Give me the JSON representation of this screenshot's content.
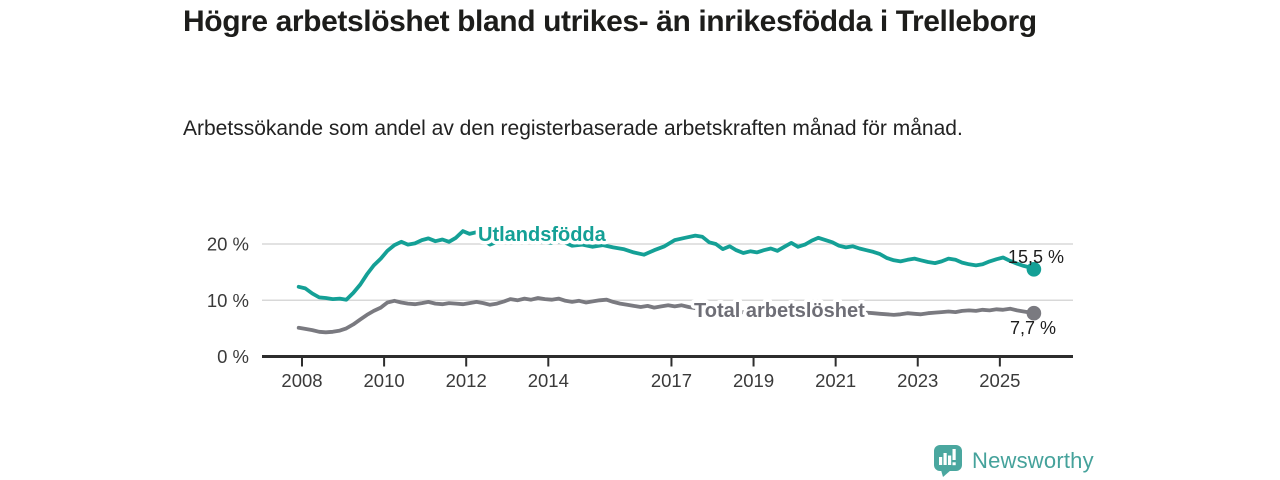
{
  "title": "Högre arbetslöshet bland utrikes- än inrikesfödda i Trelleborg",
  "subtitle": "Arbetssökande som andel av den registerbaserade arbetskraften månad för månad.",
  "footer": {
    "brand": "Newsworthy",
    "brand_color": "#45a29b",
    "logo_icon": "bar-chart-speech-bubble-icon"
  },
  "chart_data": {
    "type": "line",
    "unit": "%",
    "grid": true,
    "legend_position": "inline-labels",
    "x_axis": {
      "ticks": [
        2008,
        2010,
        2012,
        2014,
        2017,
        2019,
        2021,
        2023,
        2025
      ],
      "tick_labels": [
        "2008",
        "2010",
        "2012",
        "2014",
        "2017",
        "2019",
        "2021",
        "2023",
        "2025"
      ],
      "range": [
        2007.0,
        2026.7
      ]
    },
    "y_axis": {
      "ticks": [
        0,
        10,
        20
      ],
      "tick_labels": [
        "0 %",
        "10 %",
        "20 %"
      ],
      "range": [
        0,
        22.5
      ]
    },
    "series": [
      {
        "id": "utlandsfodda",
        "name": "Utlandsfödda",
        "color": "#14a096",
        "end_value": 15.5,
        "end_label": "15,5 %",
        "points": [
          [
            2007.92,
            12.4
          ],
          [
            2008.08,
            12.1
          ],
          [
            2008.25,
            11.2
          ],
          [
            2008.42,
            10.5
          ],
          [
            2008.58,
            10.4
          ],
          [
            2008.75,
            10.2
          ],
          [
            2008.92,
            10.3
          ],
          [
            2009.08,
            10.1
          ],
          [
            2009.25,
            11.3
          ],
          [
            2009.42,
            12.8
          ],
          [
            2009.58,
            14.6
          ],
          [
            2009.75,
            16.2
          ],
          [
            2009.92,
            17.4
          ],
          [
            2010.08,
            18.8
          ],
          [
            2010.25,
            19.8
          ],
          [
            2010.42,
            20.4
          ],
          [
            2010.58,
            19.9
          ],
          [
            2010.75,
            20.1
          ],
          [
            2010.92,
            20.7
          ],
          [
            2011.08,
            21.0
          ],
          [
            2011.25,
            20.5
          ],
          [
            2011.42,
            20.8
          ],
          [
            2011.58,
            20.4
          ],
          [
            2011.75,
            21.1
          ],
          [
            2011.92,
            22.3
          ],
          [
            2012.08,
            21.8
          ],
          [
            2012.25,
            22.1
          ],
          [
            2012.42,
            20.7
          ],
          [
            2012.58,
            19.9
          ],
          [
            2012.75,
            20.4
          ],
          [
            2012.92,
            20.6
          ],
          [
            2013.08,
            20.3
          ],
          [
            2013.33,
            20.8
          ],
          [
            2013.58,
            21.1
          ],
          [
            2013.83,
            20.4
          ],
          [
            2014.08,
            20.2
          ],
          [
            2014.33,
            20.5
          ],
          [
            2014.58,
            19.7
          ],
          [
            2014.83,
            19.9
          ],
          [
            2015.08,
            19.5
          ],
          [
            2015.33,
            19.8
          ],
          [
            2015.58,
            19.4
          ],
          [
            2015.83,
            19.1
          ],
          [
            2016.08,
            18.5
          ],
          [
            2016.33,
            18.1
          ],
          [
            2016.58,
            18.9
          ],
          [
            2016.83,
            19.6
          ],
          [
            2017.08,
            20.7
          ],
          [
            2017.33,
            21.1
          ],
          [
            2017.58,
            21.5
          ],
          [
            2017.75,
            21.3
          ],
          [
            2017.92,
            20.3
          ],
          [
            2018.08,
            20.0
          ],
          [
            2018.25,
            19.1
          ],
          [
            2018.42,
            19.6
          ],
          [
            2018.58,
            18.9
          ],
          [
            2018.75,
            18.4
          ],
          [
            2018.92,
            18.7
          ],
          [
            2019.08,
            18.5
          ],
          [
            2019.25,
            18.9
          ],
          [
            2019.42,
            19.2
          ],
          [
            2019.58,
            18.8
          ],
          [
            2019.75,
            19.5
          ],
          [
            2019.92,
            20.2
          ],
          [
            2020.08,
            19.5
          ],
          [
            2020.25,
            19.9
          ],
          [
            2020.42,
            20.6
          ],
          [
            2020.58,
            21.1
          ],
          [
            2020.75,
            20.7
          ],
          [
            2020.92,
            20.3
          ],
          [
            2021.08,
            19.7
          ],
          [
            2021.25,
            19.4
          ],
          [
            2021.42,
            19.6
          ],
          [
            2021.58,
            19.2
          ],
          [
            2021.75,
            18.9
          ],
          [
            2021.92,
            18.6
          ],
          [
            2022.08,
            18.2
          ],
          [
            2022.25,
            17.5
          ],
          [
            2022.42,
            17.1
          ],
          [
            2022.58,
            16.9
          ],
          [
            2022.75,
            17.2
          ],
          [
            2022.92,
            17.4
          ],
          [
            2023.08,
            17.1
          ],
          [
            2023.25,
            16.8
          ],
          [
            2023.42,
            16.6
          ],
          [
            2023.58,
            16.9
          ],
          [
            2023.75,
            17.4
          ],
          [
            2023.92,
            17.2
          ],
          [
            2024.08,
            16.7
          ],
          [
            2024.25,
            16.4
          ],
          [
            2024.42,
            16.2
          ],
          [
            2024.58,
            16.4
          ],
          [
            2024.75,
            16.9
          ],
          [
            2024.92,
            17.3
          ],
          [
            2025.08,
            17.6
          ],
          [
            2025.25,
            17.0
          ],
          [
            2025.42,
            16.5
          ],
          [
            2025.58,
            16.1
          ],
          [
            2025.75,
            15.8
          ],
          [
            2025.83,
            15.5
          ]
        ]
      },
      {
        "id": "total",
        "name": "Total arbetslöshet",
        "color": "#7a7a80",
        "end_value": 7.7,
        "end_label": "7,7 %",
        "points": [
          [
            2007.92,
            5.1
          ],
          [
            2008.08,
            4.9
          ],
          [
            2008.25,
            4.7
          ],
          [
            2008.42,
            4.4
          ],
          [
            2008.58,
            4.3
          ],
          [
            2008.75,
            4.4
          ],
          [
            2008.92,
            4.6
          ],
          [
            2009.08,
            5.0
          ],
          [
            2009.25,
            5.7
          ],
          [
            2009.42,
            6.6
          ],
          [
            2009.58,
            7.4
          ],
          [
            2009.75,
            8.1
          ],
          [
            2009.92,
            8.7
          ],
          [
            2010.08,
            9.6
          ],
          [
            2010.25,
            9.9
          ],
          [
            2010.42,
            9.6
          ],
          [
            2010.58,
            9.4
          ],
          [
            2010.75,
            9.3
          ],
          [
            2010.92,
            9.5
          ],
          [
            2011.08,
            9.7
          ],
          [
            2011.25,
            9.4
          ],
          [
            2011.42,
            9.3
          ],
          [
            2011.58,
            9.5
          ],
          [
            2011.75,
            9.4
          ],
          [
            2011.92,
            9.3
          ],
          [
            2012.08,
            9.5
          ],
          [
            2012.25,
            9.7
          ],
          [
            2012.42,
            9.5
          ],
          [
            2012.58,
            9.2
          ],
          [
            2012.75,
            9.4
          ],
          [
            2012.92,
            9.8
          ],
          [
            2013.08,
            10.2
          ],
          [
            2013.25,
            10.0
          ],
          [
            2013.42,
            10.3
          ],
          [
            2013.58,
            10.1
          ],
          [
            2013.75,
            10.4
          ],
          [
            2013.92,
            10.2
          ],
          [
            2014.08,
            10.1
          ],
          [
            2014.25,
            10.3
          ],
          [
            2014.42,
            9.9
          ],
          [
            2014.58,
            9.7
          ],
          [
            2014.75,
            9.9
          ],
          [
            2014.92,
            9.6
          ],
          [
            2015.08,
            9.8
          ],
          [
            2015.25,
            10.0
          ],
          [
            2015.42,
            10.1
          ],
          [
            2015.58,
            9.7
          ],
          [
            2015.75,
            9.4
          ],
          [
            2015.92,
            9.2
          ],
          [
            2016.08,
            9.0
          ],
          [
            2016.25,
            8.8
          ],
          [
            2016.42,
            9.0
          ],
          [
            2016.58,
            8.7
          ],
          [
            2016.75,
            8.9
          ],
          [
            2016.92,
            9.1
          ],
          [
            2017.08,
            8.9
          ],
          [
            2017.25,
            9.1
          ],
          [
            2017.42,
            8.8
          ],
          [
            2017.58,
            8.6
          ],
          [
            2017.75,
            8.4
          ],
          [
            2017.92,
            8.3
          ],
          [
            2018.08,
            8.1
          ],
          [
            2018.25,
            7.9
          ],
          [
            2018.42,
            8.0
          ],
          [
            2018.58,
            7.8
          ],
          [
            2018.75,
            7.9
          ],
          [
            2018.92,
            7.7
          ],
          [
            2019.08,
            7.8
          ],
          [
            2019.25,
            7.6
          ],
          [
            2019.42,
            7.7
          ],
          [
            2019.58,
            7.9
          ],
          [
            2019.75,
            7.8
          ],
          [
            2019.92,
            8.0
          ],
          [
            2020.08,
            8.1
          ],
          [
            2020.25,
            8.6
          ],
          [
            2020.42,
            8.9
          ],
          [
            2020.58,
            9.0
          ],
          [
            2020.75,
            8.8
          ],
          [
            2020.92,
            8.6
          ],
          [
            2021.08,
            8.4
          ],
          [
            2021.25,
            8.2
          ],
          [
            2021.42,
            8.0
          ],
          [
            2021.58,
            7.9
          ],
          [
            2021.75,
            7.8
          ],
          [
            2021.92,
            7.7
          ],
          [
            2022.08,
            7.6
          ],
          [
            2022.25,
            7.5
          ],
          [
            2022.42,
            7.4
          ],
          [
            2022.58,
            7.5
          ],
          [
            2022.75,
            7.7
          ],
          [
            2022.92,
            7.6
          ],
          [
            2023.08,
            7.5
          ],
          [
            2023.25,
            7.7
          ],
          [
            2023.42,
            7.8
          ],
          [
            2023.58,
            7.9
          ],
          [
            2023.75,
            8.0
          ],
          [
            2023.92,
            7.9
          ],
          [
            2024.08,
            8.1
          ],
          [
            2024.25,
            8.2
          ],
          [
            2024.42,
            8.1
          ],
          [
            2024.58,
            8.3
          ],
          [
            2024.75,
            8.2
          ],
          [
            2024.92,
            8.4
          ],
          [
            2025.08,
            8.3
          ],
          [
            2025.25,
            8.5
          ],
          [
            2025.42,
            8.2
          ],
          [
            2025.58,
            8.0
          ],
          [
            2025.75,
            7.8
          ],
          [
            2025.83,
            7.7
          ]
        ]
      }
    ]
  }
}
